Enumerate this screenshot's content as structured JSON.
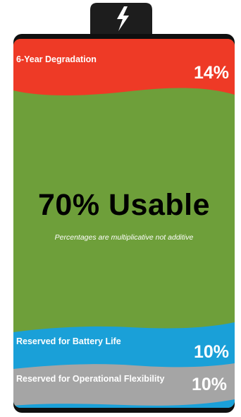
{
  "colors": {
    "cap": "#1d1d1d",
    "frame": "#0f0f0f",
    "degradation": "#ee3a26",
    "usable": "#6e9f3a",
    "battery_life": "#1aa0d8",
    "operational_flexibility": "#a5a5a5",
    "bolt": "#ffffff"
  },
  "icons": {
    "cap": "lightning-bolt-icon"
  },
  "segments": {
    "degradation": {
      "label": "6-Year Degradation",
      "percent": "14%"
    },
    "usable": {
      "label": "70% Usable",
      "note": "Percentages are multiplicative not additive"
    },
    "battery_life": {
      "label": "Reserved for Battery Life",
      "percent": "10%"
    },
    "operational_flexibility": {
      "label": "Reserved for Operational Flexibility",
      "percent": "10%"
    }
  }
}
